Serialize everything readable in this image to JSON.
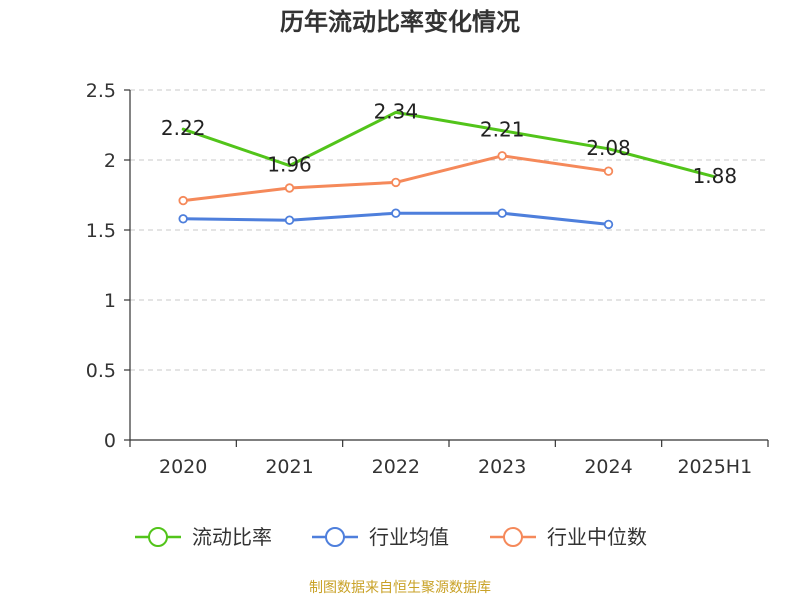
{
  "title": "历年流动比率变化情况",
  "source": "制图数据来自恒生聚源数据库",
  "chart_data": {
    "type": "line",
    "title": "历年流动比率变化情况",
    "categories": [
      "2020",
      "2021",
      "2022",
      "2023",
      "2024",
      "2025H1"
    ],
    "ylim": [
      0,
      2.5
    ],
    "yticks": [
      "0",
      "0.5",
      "1",
      "1.5",
      "2",
      "2.5"
    ],
    "grid": true,
    "legend_position": "bottom",
    "series": [
      {
        "name": "流动比率",
        "color": "#52c41a",
        "values": [
          2.22,
          1.96,
          2.34,
          2.21,
          2.08,
          1.88
        ],
        "labels": [
          "2.22",
          "1.96",
          "2.34",
          "2.21",
          "2.08",
          "1.88"
        ]
      },
      {
        "name": "行业均值",
        "color": "#4e7fdc",
        "values": [
          1.58,
          1.57,
          1.62,
          1.62,
          1.54,
          null
        ]
      },
      {
        "name": "行业中位数",
        "color": "#f5895a",
        "values": [
          1.71,
          1.8,
          1.84,
          2.03,
          1.92,
          null
        ]
      }
    ]
  }
}
